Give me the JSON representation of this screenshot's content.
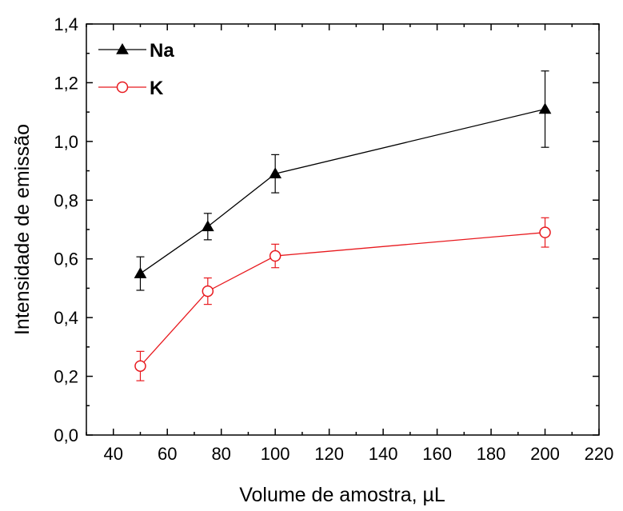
{
  "chart_data": {
    "type": "line",
    "title": "",
    "xlabel": "Volume de amostra, µL",
    "ylabel": "Intensidade de emissão",
    "xlim": [
      30,
      220
    ],
    "ylim": [
      0.0,
      1.4
    ],
    "xticks": [
      40,
      60,
      80,
      100,
      120,
      140,
      160,
      180,
      200,
      220
    ],
    "xtick_labels": [
      "40",
      "60",
      "80",
      "100",
      "120",
      "140",
      "160",
      "180",
      "200",
      "220"
    ],
    "yticks": [
      0.0,
      0.2,
      0.4,
      0.6,
      0.8,
      1.0,
      1.2,
      1.4
    ],
    "ytick_labels": [
      "0,0",
      "0,2",
      "0,4",
      "0,6",
      "0,8",
      "1,0",
      "1,2",
      "1,4"
    ],
    "grid": false,
    "legend_position": "top-left",
    "series": [
      {
        "name": "Na",
        "color": "#000000",
        "marker": "filled-triangle",
        "x": [
          50,
          75,
          100,
          200
        ],
        "y": [
          0.55,
          0.71,
          0.89,
          1.11
        ],
        "error": [
          0.057,
          0.045,
          0.065,
          0.13
        ]
      },
      {
        "name": "K",
        "color": "#e8191e",
        "marker": "open-circle",
        "x": [
          50,
          75,
          100,
          200
        ],
        "y": [
          0.235,
          0.49,
          0.61,
          0.69
        ],
        "error": [
          0.05,
          0.045,
          0.04,
          0.05
        ]
      }
    ]
  }
}
